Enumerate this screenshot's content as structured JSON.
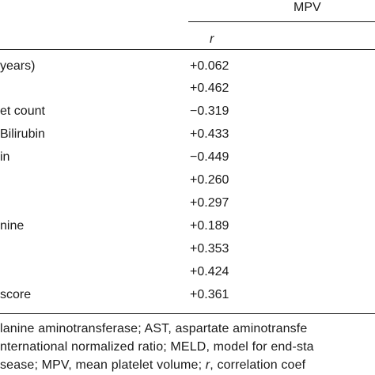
{
  "table": {
    "header": {
      "group_label": "MPV",
      "stat_label": "r"
    },
    "rows": [
      {
        "label": "years)",
        "value": "+0.062"
      },
      {
        "label": "",
        "value": "+0.462"
      },
      {
        "label": "et count",
        "value": "−0.319"
      },
      {
        "label": "Bilirubin",
        "value": "+0.433"
      },
      {
        "label": "in",
        "value": "−0.449"
      },
      {
        "label": "",
        "value": "+0.260"
      },
      {
        "label": "",
        "value": "+0.297"
      },
      {
        "label": "nine",
        "value": "+0.189"
      },
      {
        "label": "",
        "value": "+0.353"
      },
      {
        "label": "",
        "value": "+0.424"
      },
      {
        "label": "score",
        "value": "+0.361"
      }
    ]
  },
  "footnotes": {
    "line1": "lanine aminotransferase; AST, aspartate aminotransfe",
    "line2": "nternational normalized ratio; MELD, model for end-sta",
    "line3_a": "sease; MPV, mean platelet volume; ",
    "line3_r": "r",
    "line3_b": ", correlation coef"
  }
}
